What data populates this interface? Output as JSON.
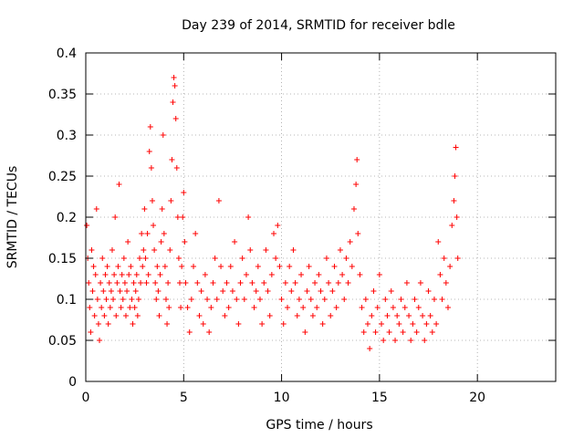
{
  "chart_data": {
    "type": "scatter",
    "title": "Day 239 of 2014, SRMTID for receiver bdle",
    "xlabel": "GPS time / hours",
    "ylabel": "SRMTID / TECUs",
    "xlim": [
      0,
      24
    ],
    "ylim": [
      0,
      0.4
    ],
    "xticks": [
      0,
      5,
      10,
      15,
      20
    ],
    "xtick_labels": [
      "0",
      "5",
      "10",
      "15",
      "20"
    ],
    "yticks": [
      0,
      0.05,
      0.1,
      0.15,
      0.2,
      0.25,
      0.3,
      0.35,
      0.4
    ],
    "ytick_labels": [
      "0",
      "0.05",
      "0.1",
      "0.15",
      "0.2",
      "0.25",
      "0.3",
      "0.35",
      "0.4"
    ],
    "grid": true,
    "marker": "+",
    "color": "#ff0000",
    "series": [
      {
        "name": "SRMTID",
        "points": [
          [
            0.05,
            0.19
          ],
          [
            0.1,
            0.15
          ],
          [
            0.15,
            0.12
          ],
          [
            0.2,
            0.09
          ],
          [
            0.25,
            0.06
          ],
          [
            0.3,
            0.16
          ],
          [
            0.35,
            0.11
          ],
          [
            0.4,
            0.14
          ],
          [
            0.45,
            0.08
          ],
          [
            0.5,
            0.13
          ],
          [
            0.55,
            0.21
          ],
          [
            0.6,
            0.1
          ],
          [
            0.65,
            0.07
          ],
          [
            0.7,
            0.05
          ],
          [
            0.75,
            0.12
          ],
          [
            0.8,
            0.09
          ],
          [
            0.85,
            0.15
          ],
          [
            0.9,
            0.11
          ],
          [
            0.95,
            0.08
          ],
          [
            1.0,
            0.13
          ],
          [
            1.05,
            0.1
          ],
          [
            1.1,
            0.14
          ],
          [
            1.15,
            0.07
          ],
          [
            1.2,
            0.12
          ],
          [
            1.25,
            0.09
          ],
          [
            1.3,
            0.11
          ],
          [
            1.35,
            0.16
          ],
          [
            1.4,
            0.1
          ],
          [
            1.45,
            0.13
          ],
          [
            1.5,
            0.2
          ],
          [
            1.55,
            0.08
          ],
          [
            1.6,
            0.12
          ],
          [
            1.65,
            0.14
          ],
          [
            1.7,
            0.24
          ],
          [
            1.75,
            0.11
          ],
          [
            1.8,
            0.09
          ],
          [
            1.85,
            0.13
          ],
          [
            1.9,
            0.1
          ],
          [
            1.95,
            0.15
          ],
          [
            2.0,
            0.12
          ],
          [
            2.05,
            0.08
          ],
          [
            2.1,
            0.11
          ],
          [
            2.15,
            0.17
          ],
          [
            2.2,
            0.13
          ],
          [
            2.25,
            0.09
          ],
          [
            2.3,
            0.14
          ],
          [
            2.35,
            0.1
          ],
          [
            2.4,
            0.07
          ],
          [
            2.45,
            0.12
          ],
          [
            2.5,
            0.09
          ],
          [
            2.55,
            0.11
          ],
          [
            2.6,
            0.13
          ],
          [
            2.65,
            0.08
          ],
          [
            2.7,
            0.1
          ],
          [
            2.75,
            0.15
          ],
          [
            2.8,
            0.12
          ],
          [
            2.85,
            0.18
          ],
          [
            2.9,
            0.14
          ],
          [
            2.95,
            0.16
          ],
          [
            3.0,
            0.21
          ],
          [
            3.05,
            0.15
          ],
          [
            3.1,
            0.12
          ],
          [
            3.15,
            0.18
          ],
          [
            3.2,
            0.13
          ],
          [
            3.25,
            0.28
          ],
          [
            3.3,
            0.31
          ],
          [
            3.35,
            0.26
          ],
          [
            3.4,
            0.22
          ],
          [
            3.45,
            0.19
          ],
          [
            3.5,
            0.16
          ],
          [
            3.55,
            0.12
          ],
          [
            3.6,
            0.1
          ],
          [
            3.65,
            0.14
          ],
          [
            3.7,
            0.11
          ],
          [
            3.75,
            0.08
          ],
          [
            3.8,
            0.13
          ],
          [
            3.85,
            0.17
          ],
          [
            3.9,
            0.21
          ],
          [
            3.95,
            0.3
          ],
          [
            4.0,
            0.18
          ],
          [
            4.05,
            0.14
          ],
          [
            4.1,
            0.1
          ],
          [
            4.15,
            0.07
          ],
          [
            4.2,
            0.12
          ],
          [
            4.25,
            0.09
          ],
          [
            4.3,
            0.16
          ],
          [
            4.35,
            0.22
          ],
          [
            4.4,
            0.27
          ],
          [
            4.45,
            0.34
          ],
          [
            4.5,
            0.37
          ],
          [
            4.55,
            0.36
          ],
          [
            4.6,
            0.32
          ],
          [
            4.65,
            0.26
          ],
          [
            4.7,
            0.2
          ],
          [
            4.75,
            0.15
          ],
          [
            4.8,
            0.12
          ],
          [
            4.85,
            0.09
          ],
          [
            4.9,
            0.14
          ],
          [
            4.95,
            0.2
          ],
          [
            5.0,
            0.23
          ],
          [
            5.05,
            0.17
          ],
          [
            5.1,
            0.12
          ],
          [
            5.2,
            0.09
          ],
          [
            5.3,
            0.06
          ],
          [
            5.4,
            0.1
          ],
          [
            5.5,
            0.14
          ],
          [
            5.6,
            0.18
          ],
          [
            5.7,
            0.12
          ],
          [
            5.8,
            0.08
          ],
          [
            5.9,
            0.11
          ],
          [
            6.0,
            0.07
          ],
          [
            6.1,
            0.13
          ],
          [
            6.2,
            0.1
          ],
          [
            6.3,
            0.06
          ],
          [
            6.4,
            0.09
          ],
          [
            6.5,
            0.12
          ],
          [
            6.6,
            0.15
          ],
          [
            6.7,
            0.1
          ],
          [
            6.8,
            0.22
          ],
          [
            6.9,
            0.14
          ],
          [
            7.0,
            0.11
          ],
          [
            7.1,
            0.08
          ],
          [
            7.2,
            0.12
          ],
          [
            7.3,
            0.09
          ],
          [
            7.4,
            0.14
          ],
          [
            7.5,
            0.11
          ],
          [
            7.6,
            0.17
          ],
          [
            7.7,
            0.1
          ],
          [
            7.8,
            0.07
          ],
          [
            7.9,
            0.12
          ],
          [
            8.0,
            0.15
          ],
          [
            8.1,
            0.1
          ],
          [
            8.2,
            0.13
          ],
          [
            8.3,
            0.2
          ],
          [
            8.4,
            0.16
          ],
          [
            8.5,
            0.12
          ],
          [
            8.6,
            0.09
          ],
          [
            8.7,
            0.11
          ],
          [
            8.8,
            0.14
          ],
          [
            8.9,
            0.1
          ],
          [
            9.0,
            0.07
          ],
          [
            9.1,
            0.12
          ],
          [
            9.2,
            0.16
          ],
          [
            9.3,
            0.11
          ],
          [
            9.4,
            0.08
          ],
          [
            9.5,
            0.13
          ],
          [
            9.6,
            0.18
          ],
          [
            9.7,
            0.15
          ],
          [
            9.8,
            0.19
          ],
          [
            9.9,
            0.14
          ],
          [
            10.0,
            0.1
          ],
          [
            10.1,
            0.07
          ],
          [
            10.2,
            0.12
          ],
          [
            10.3,
            0.09
          ],
          [
            10.4,
            0.14
          ],
          [
            10.5,
            0.11
          ],
          [
            10.6,
            0.16
          ],
          [
            10.7,
            0.12
          ],
          [
            10.8,
            0.08
          ],
          [
            10.9,
            0.1
          ],
          [
            11.0,
            0.13
          ],
          [
            11.1,
            0.09
          ],
          [
            11.2,
            0.06
          ],
          [
            11.3,
            0.11
          ],
          [
            11.4,
            0.14
          ],
          [
            11.5,
            0.1
          ],
          [
            11.6,
            0.08
          ],
          [
            11.7,
            0.12
          ],
          [
            11.8,
            0.09
          ],
          [
            11.9,
            0.13
          ],
          [
            12.0,
            0.11
          ],
          [
            12.1,
            0.07
          ],
          [
            12.2,
            0.1
          ],
          [
            12.3,
            0.15
          ],
          [
            12.4,
            0.12
          ],
          [
            12.5,
            0.08
          ],
          [
            12.6,
            0.11
          ],
          [
            12.7,
            0.14
          ],
          [
            12.8,
            0.09
          ],
          [
            12.9,
            0.12
          ],
          [
            13.0,
            0.16
          ],
          [
            13.1,
            0.13
          ],
          [
            13.2,
            0.1
          ],
          [
            13.3,
            0.15
          ],
          [
            13.4,
            0.12
          ],
          [
            13.5,
            0.17
          ],
          [
            13.6,
            0.14
          ],
          [
            13.7,
            0.21
          ],
          [
            13.8,
            0.24
          ],
          [
            13.85,
            0.27
          ],
          [
            13.9,
            0.18
          ],
          [
            14.0,
            0.13
          ],
          [
            14.1,
            0.09
          ],
          [
            14.2,
            0.06
          ],
          [
            14.3,
            0.1
          ],
          [
            14.4,
            0.07
          ],
          [
            14.5,
            0.04
          ],
          [
            14.6,
            0.08
          ],
          [
            14.7,
            0.11
          ],
          [
            14.8,
            0.06
          ],
          [
            14.9,
            0.09
          ],
          [
            15.0,
            0.13
          ],
          [
            15.1,
            0.07
          ],
          [
            15.2,
            0.05
          ],
          [
            15.3,
            0.1
          ],
          [
            15.4,
            0.08
          ],
          [
            15.5,
            0.06
          ],
          [
            15.6,
            0.11
          ],
          [
            15.7,
            0.09
          ],
          [
            15.8,
            0.05
          ],
          [
            15.9,
            0.08
          ],
          [
            16.0,
            0.07
          ],
          [
            16.1,
            0.1
          ],
          [
            16.2,
            0.06
          ],
          [
            16.3,
            0.09
          ],
          [
            16.4,
            0.12
          ],
          [
            16.5,
            0.08
          ],
          [
            16.6,
            0.05
          ],
          [
            16.7,
            0.07
          ],
          [
            16.8,
            0.1
          ],
          [
            16.9,
            0.06
          ],
          [
            17.0,
            0.09
          ],
          [
            17.1,
            0.12
          ],
          [
            17.2,
            0.08
          ],
          [
            17.3,
            0.05
          ],
          [
            17.4,
            0.07
          ],
          [
            17.5,
            0.11
          ],
          [
            17.6,
            0.08
          ],
          [
            17.7,
            0.06
          ],
          [
            17.8,
            0.1
          ],
          [
            17.9,
            0.07
          ],
          [
            18.0,
            0.17
          ],
          [
            18.1,
            0.13
          ],
          [
            18.2,
            0.1
          ],
          [
            18.3,
            0.15
          ],
          [
            18.4,
            0.12
          ],
          [
            18.5,
            0.09
          ],
          [
            18.6,
            0.14
          ],
          [
            18.7,
            0.19
          ],
          [
            18.8,
            0.22
          ],
          [
            18.85,
            0.25
          ],
          [
            18.9,
            0.285
          ],
          [
            18.95,
            0.2
          ],
          [
            19.0,
            0.15
          ]
        ]
      }
    ]
  }
}
